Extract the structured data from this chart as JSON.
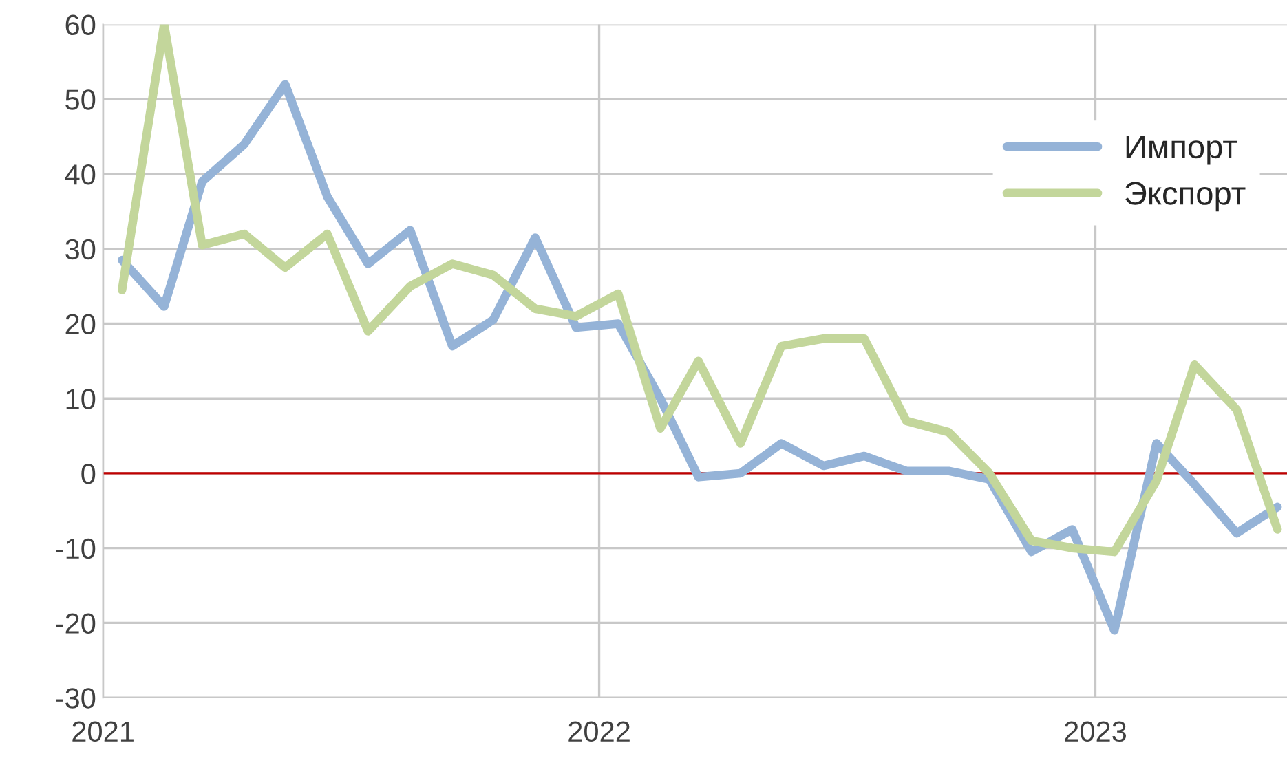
{
  "chart_data": {
    "type": "line",
    "x": [
      "2021-01-15",
      "2021-02-15",
      "2021-03-15",
      "2021-04-15",
      "2021-05-15",
      "2021-06-15",
      "2021-07-15",
      "2021-08-15",
      "2021-09-15",
      "2021-10-15",
      "2021-11-15",
      "2021-12-15",
      "2022-01-15",
      "2022-02-15",
      "2022-03-15",
      "2022-04-15",
      "2022-05-15",
      "2022-06-15",
      "2022-07-15",
      "2022-08-15",
      "2022-09-15",
      "2022-10-15",
      "2022-11-15",
      "2022-12-15",
      "2023-01-15",
      "2023-02-15",
      "2023-03-15",
      "2023-04-15",
      "2023-05-15"
    ],
    "series": [
      {
        "name": "Импорт",
        "color": "#95b3d7",
        "values": [
          28.5,
          22.3,
          39,
          44,
          52,
          37,
          28,
          32.5,
          17,
          20.5,
          31.5,
          19.5,
          20,
          10,
          -0.5,
          0,
          4,
          1,
          2.3,
          0.3,
          0.3,
          -0.8,
          -10.5,
          -7.5,
          -21,
          4,
          -1.5,
          -8,
          -4.5
        ]
      },
      {
        "name": "Экспорт",
        "color": "#c3d69b",
        "values": [
          24.5,
          60,
          30.5,
          32,
          27.5,
          32,
          19,
          25,
          28,
          26.5,
          22,
          21,
          24,
          6,
          15,
          4,
          17,
          18,
          18,
          7,
          5.5,
          0,
          -9,
          -10,
          -10.5,
          -1,
          14.5,
          8.5,
          -7.5
        ]
      }
    ],
    "xlim": [
      "2021-01-01",
      "2023-05-22"
    ],
    "xticks": [
      "2021",
      "2022",
      "2023"
    ],
    "ylim": [
      -30,
      60
    ],
    "yticks": [
      -30,
      -20,
      -10,
      0,
      10,
      20,
      30,
      40,
      50,
      60
    ],
    "ref_lines": [
      {
        "axis": "y",
        "value": 0,
        "color": "#c00000"
      }
    ],
    "grid": true,
    "legend": "top right",
    "marker": "none",
    "line_style": "solid"
  }
}
